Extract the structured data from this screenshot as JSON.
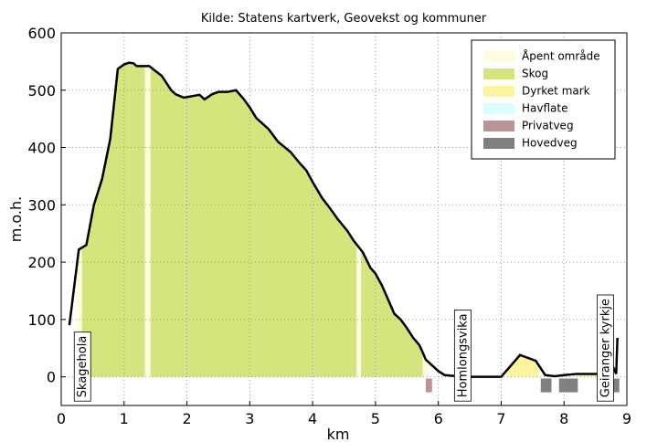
{
  "chart_data": {
    "type": "profile",
    "title": "Kilde: Statens kartverk, Geovekst og kommuner",
    "x_label": "km",
    "y_label": "m.o.h.",
    "xlim": [
      0,
      9
    ],
    "ylim": [
      -50,
      600
    ],
    "xticks": [
      0,
      1,
      2,
      3,
      4,
      5,
      6,
      7,
      8,
      9
    ],
    "yticks": [
      0,
      100,
      200,
      300,
      400,
      500,
      600
    ],
    "grid": true,
    "legend": "upper right",
    "line_color": "#000000",
    "x": [
      0.13,
      0.28,
      0.4,
      0.52,
      0.65,
      0.78,
      0.9,
      1.0,
      1.08,
      1.15,
      1.2,
      1.4,
      1.6,
      1.75,
      1.82,
      1.95,
      2.1,
      2.2,
      2.28,
      2.4,
      2.5,
      2.65,
      2.78,
      2.9,
      3.0,
      3.1,
      3.3,
      3.45,
      3.65,
      3.8,
      3.9,
      4.0,
      4.15,
      4.25,
      4.4,
      4.55,
      4.65,
      4.8,
      4.92,
      5.0,
      5.1,
      5.2,
      5.3,
      5.4,
      5.5,
      5.6,
      5.7,
      5.75,
      5.8,
      5.9,
      6.0,
      6.1,
      6.2,
      6.5,
      7.0,
      7.3,
      7.55,
      7.7,
      7.85,
      8.0,
      8.2,
      8.4,
      8.55,
      8.75,
      8.83,
      8.85
    ],
    "values": [
      90,
      222,
      230,
      300,
      345,
      415,
      537,
      545,
      548,
      547,
      542,
      542,
      525,
      500,
      493,
      487,
      490,
      492,
      484,
      493,
      497,
      497,
      500,
      485,
      470,
      452,
      432,
      410,
      392,
      372,
      360,
      340,
      312,
      298,
      275,
      255,
      238,
      217,
      190,
      180,
      160,
      135,
      110,
      100,
      85,
      68,
      55,
      43,
      30,
      20,
      10,
      3,
      2,
      0,
      0,
      38,
      28,
      3,
      1,
      3,
      5,
      5,
      5,
      25,
      5,
      68
    ],
    "series": [
      {
        "name": "Åpent område",
        "color": "#fffde0",
        "kind": "area",
        "ranges": [
          [
            0.25,
            0.33
          ],
          [
            1.33,
            1.42
          ],
          [
            4.7,
            4.77
          ],
          [
            5.75,
            5.85
          ]
        ]
      },
      {
        "name": "Skog",
        "color": "#d4e57e",
        "kind": "area",
        "ranges": [
          [
            0.33,
            1.33
          ],
          [
            1.42,
            4.7
          ],
          [
            4.77,
            5.75
          ]
        ]
      },
      {
        "name": "Dyrket mark",
        "color": "#fbf59f",
        "kind": "area",
        "ranges": [
          [
            7.1,
            7.6
          ],
          [
            8.2,
            8.7
          ]
        ]
      },
      {
        "name": "Havflate",
        "color": "#dcfdfd",
        "kind": "area",
        "ranges": []
      },
      {
        "name": "Privatveg",
        "color": "#b99595",
        "kind": "road",
        "ranges": [
          [
            5.8,
            5.9
          ]
        ]
      },
      {
        "name": "Hovedveg",
        "color": "#808080",
        "kind": "road",
        "ranges": [
          [
            7.63,
            7.8
          ],
          [
            7.92,
            8.22
          ],
          [
            8.75,
            8.88
          ]
        ]
      }
    ],
    "annotations": [
      {
        "text": "Skagehola",
        "x": 0.28
      },
      {
        "text": "Homlongsvika",
        "x": 6.33
      },
      {
        "text": "Geiranger kyrkje",
        "x": 8.6
      }
    ]
  }
}
